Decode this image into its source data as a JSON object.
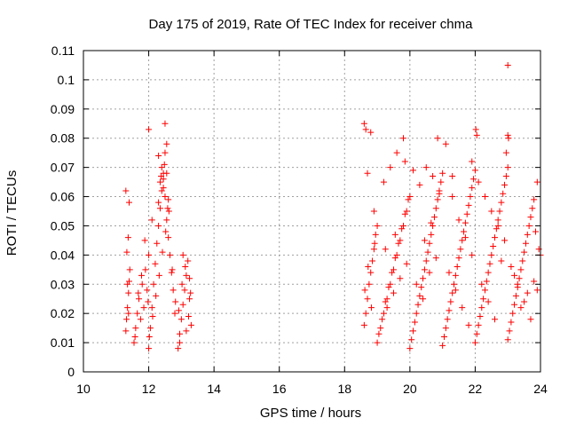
{
  "chart_data": {
    "type": "scatter",
    "title": "Day 175 of 2019, Rate Of TEC Index for receiver chma",
    "xlabel": "GPS time / hours",
    "ylabel": "ROTI / TECUs",
    "xlim": [
      10,
      24
    ],
    "ylim": [
      0,
      0.11
    ],
    "xticks": [
      10,
      12,
      14,
      16,
      18,
      20,
      22,
      24
    ],
    "xtick_labels": [
      "10",
      "12",
      "14",
      "16",
      "18",
      "20",
      "22",
      "24"
    ],
    "yticks": [
      0,
      0.01,
      0.02,
      0.03,
      0.04,
      0.05,
      0.06,
      0.07,
      0.08,
      0.09,
      0.1,
      0.11
    ],
    "ytick_labels": [
      "0",
      "0.01",
      "0.02",
      "0.03",
      "0.04",
      "0.05",
      "0.06",
      "0.07",
      "0.08",
      "0.09",
      "0.1",
      "0.11"
    ],
    "grid": true,
    "marker": "+",
    "color": "#ff0000",
    "series": [
      {
        "name": "chma",
        "x": [
          11.3,
          11.32,
          11.35,
          11.38,
          11.4,
          11.42,
          11.33,
          11.37,
          11.4,
          11.3,
          11.35,
          11.38,
          11.55,
          11.6,
          11.65,
          11.7,
          11.75,
          11.8,
          11.85,
          11.9,
          11.95,
          12.0,
          11.58,
          11.68,
          11.78,
          11.88,
          11.98,
          12.0,
          12.05,
          12.1,
          12.15,
          12.2,
          12.25,
          12.3,
          12.35,
          12.4,
          12.45,
          12.5,
          12.55,
          12.6,
          12.65,
          12.7,
          12.75,
          12.8,
          12.02,
          12.12,
          12.22,
          12.32,
          12.42,
          12.52,
          12.62,
          12.72,
          12.82,
          12.3,
          12.35,
          12.4,
          12.45,
          12.5,
          12.55,
          12.6,
          12.38,
          12.48,
          12.58,
          12.0,
          12.5,
          12.55,
          12.3,
          12.1,
          12.45,
          12.9,
          12.95,
          13.0,
          13.05,
          13.1,
          13.15,
          13.2,
          13.25,
          13.3,
          12.92,
          13.02,
          13.12,
          13.22,
          13.28,
          12.95,
          13.05,
          13.15,
          13.25,
          18.6,
          18.65,
          18.7,
          18.75,
          18.8,
          18.85,
          18.9,
          18.95,
          19.0,
          18.62,
          18.72,
          18.82,
          18.92,
          18.6,
          18.65,
          18.8,
          18.7,
          18.9,
          19.0,
          19.1,
          19.2,
          19.3,
          19.4,
          19.5,
          19.6,
          19.7,
          19.8,
          19.9,
          20.0,
          19.05,
          19.15,
          19.25,
          19.35,
          19.45,
          19.55,
          19.65,
          19.75,
          19.85,
          19.95,
          19.2,
          19.4,
          19.6,
          19.8,
          19.3,
          19.5,
          19.7,
          19.9,
          19.25,
          19.55,
          19.85,
          20.0,
          20.1,
          20.2,
          20.3,
          20.4,
          20.5,
          20.6,
          20.7,
          20.8,
          20.9,
          21.0,
          20.05,
          20.15,
          20.25,
          20.35,
          20.45,
          20.55,
          20.65,
          20.75,
          20.85,
          20.95,
          20.1,
          20.3,
          20.5,
          20.7,
          20.9,
          20.2,
          20.4,
          20.6,
          20.8,
          20.45,
          20.65,
          20.85,
          21.0,
          21.1,
          21.2,
          21.3,
          21.4,
          21.5,
          21.6,
          21.7,
          21.8,
          21.9,
          22.0,
          21.05,
          21.15,
          21.25,
          21.35,
          21.45,
          21.55,
          21.65,
          21.75,
          21.85,
          21.95,
          21.1,
          21.3,
          21.5,
          21.7,
          21.9,
          21.2,
          21.4,
          21.6,
          21.8,
          21.3,
          21.9,
          22.0,
          22.1,
          22.2,
          22.3,
          22.4,
          22.5,
          22.6,
          22.7,
          22.8,
          22.9,
          23.0,
          22.05,
          22.15,
          22.25,
          22.35,
          22.45,
          22.55,
          22.65,
          22.75,
          22.85,
          22.95,
          22.1,
          22.3,
          22.5,
          22.7,
          22.9,
          22.2,
          22.4,
          22.6,
          22.8,
          22.02,
          22.05,
          23.0,
          23.1,
          23.2,
          23.3,
          23.4,
          23.5,
          23.6,
          23.7,
          23.8,
          23.9,
          24.0,
          23.05,
          23.15,
          23.25,
          23.35,
          23.45,
          23.55,
          23.65,
          23.75,
          23.85,
          23.95,
          23.1,
          23.3,
          23.5,
          23.7,
          23.9,
          23.2,
          23.4,
          23.6,
          23.8,
          22.95,
          23.0,
          23.02,
          23.0
        ],
        "y": [
          0.014,
          0.018,
          0.022,
          0.027,
          0.031,
          0.035,
          0.041,
          0.046,
          0.058,
          0.062,
          0.03,
          0.02,
          0.01,
          0.015,
          0.02,
          0.025,
          0.018,
          0.03,
          0.022,
          0.035,
          0.028,
          0.04,
          0.012,
          0.027,
          0.033,
          0.045,
          0.024,
          0.008,
          0.015,
          0.022,
          0.03,
          0.037,
          0.044,
          0.05,
          0.056,
          0.062,
          0.068,
          0.06,
          0.052,
          0.046,
          0.04,
          0.034,
          0.028,
          0.02,
          0.012,
          0.019,
          0.026,
          0.033,
          0.041,
          0.048,
          0.055,
          0.035,
          0.024,
          0.058,
          0.065,
          0.07,
          0.063,
          0.075,
          0.068,
          0.059,
          0.067,
          0.071,
          0.056,
          0.083,
          0.085,
          0.078,
          0.074,
          0.052,
          0.066,
          0.008,
          0.013,
          0.018,
          0.023,
          0.028,
          0.033,
          0.038,
          0.025,
          0.016,
          0.021,
          0.03,
          0.036,
          0.019,
          0.027,
          0.01,
          0.04,
          0.014,
          0.032,
          0.016,
          0.02,
          0.025,
          0.03,
          0.034,
          0.038,
          0.042,
          0.047,
          0.05,
          0.028,
          0.036,
          0.022,
          0.044,
          0.085,
          0.083,
          0.082,
          0.068,
          0.055,
          0.01,
          0.015,
          0.02,
          0.025,
          0.03,
          0.035,
          0.04,
          0.045,
          0.05,
          0.055,
          0.06,
          0.013,
          0.018,
          0.024,
          0.029,
          0.034,
          0.039,
          0.044,
          0.049,
          0.054,
          0.059,
          0.065,
          0.07,
          0.075,
          0.08,
          0.022,
          0.027,
          0.032,
          0.037,
          0.042,
          0.047,
          0.072,
          0.008,
          0.014,
          0.02,
          0.026,
          0.032,
          0.038,
          0.044,
          0.05,
          0.056,
          0.062,
          0.068,
          0.011,
          0.017,
          0.023,
          0.029,
          0.035,
          0.041,
          0.047,
          0.053,
          0.059,
          0.065,
          0.069,
          0.064,
          0.07,
          0.067,
          0.061,
          0.03,
          0.025,
          0.034,
          0.039,
          0.045,
          0.051,
          0.08,
          0.009,
          0.015,
          0.021,
          0.027,
          0.033,
          0.039,
          0.045,
          0.051,
          0.057,
          0.063,
          0.069,
          0.012,
          0.018,
          0.024,
          0.03,
          0.036,
          0.042,
          0.048,
          0.054,
          0.06,
          0.066,
          0.078,
          0.067,
          0.052,
          0.046,
          0.04,
          0.034,
          0.028,
          0.022,
          0.016,
          0.06,
          0.072,
          0.01,
          0.016,
          0.022,
          0.028,
          0.034,
          0.04,
          0.046,
          0.052,
          0.058,
          0.064,
          0.07,
          0.013,
          0.019,
          0.025,
          0.031,
          0.037,
          0.043,
          0.049,
          0.055,
          0.061,
          0.067,
          0.065,
          0.06,
          0.055,
          0.05,
          0.045,
          0.03,
          0.024,
          0.018,
          0.038,
          0.083,
          0.081,
          0.011,
          0.017,
          0.023,
          0.029,
          0.035,
          0.041,
          0.047,
          0.053,
          0.059,
          0.065,
          0.04,
          0.014,
          0.02,
          0.026,
          0.032,
          0.038,
          0.044,
          0.05,
          0.056,
          0.048,
          0.042,
          0.036,
          0.03,
          0.024,
          0.018,
          0.028,
          0.033,
          0.022,
          0.027,
          0.031,
          0.075,
          0.081,
          0.08,
          0.105
        ]
      }
    ]
  }
}
